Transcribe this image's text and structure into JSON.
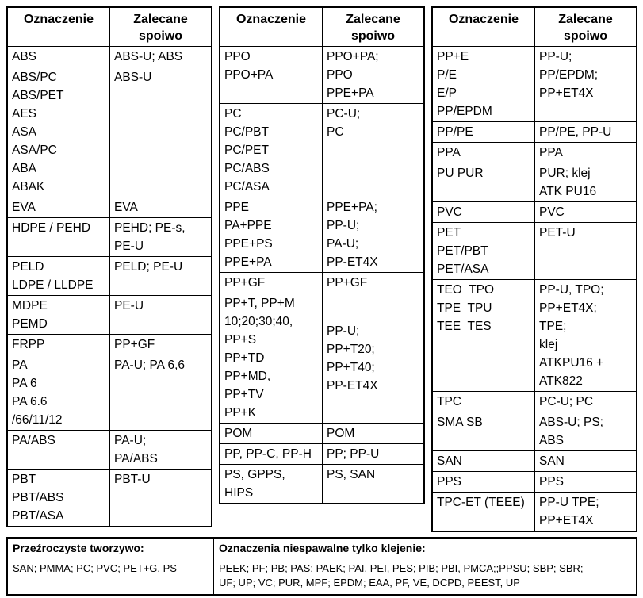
{
  "header": {
    "col1": "Oznaczenie",
    "col2": "Zalecane\nspoiwo"
  },
  "tables": [
    {
      "rows": [
        {
          "left": "ABS",
          "right": "ABS-U; ABS"
        },
        {
          "left": "ABS/PC\nABS/PET\nAES\nASA\nASA/PC\nABA\nABAK",
          "right": "ABS-U"
        },
        {
          "left": "EVA",
          "right": "EVA"
        },
        {
          "left": "HDPE / PEHD",
          "right": "PEHD; PE-s,\nPE-U"
        },
        {
          "left": "PELD\nLDPE / LLDPE",
          "right": "PELD; PE-U"
        },
        {
          "left": "MDPE\nPEMD",
          "right": "PE-U"
        },
        {
          "left": "FRPP",
          "right": "PP+GF"
        },
        {
          "left": "PA\nPA 6\nPA 6.6\n/66/11/12",
          "right": "PA-U; PA 6,6"
        },
        {
          "left": "PA/ABS",
          "right": "PA-U;\nPA/ABS"
        },
        {
          "left": "PBT\nPBT/ABS\nPBT/ASA",
          "right": "PBT-U"
        }
      ]
    },
    {
      "rows": [
        {
          "left": "PPO\nPPO+PA",
          "right": "PPO+PA;\nPPO\nPPE+PA"
        },
        {
          "left": "PC\nPC/PBT\nPC/PET\nPC/ABS\nPC/ASA",
          "right": "PC-U;\nPC"
        },
        {
          "left": "PPE\nPA+PPE\nPPE+PS\nPPE+PA",
          "right": "PPE+PA;\nPP-U;\nPA-U;\nPP-ET4X"
        },
        {
          "left": "PP+GF",
          "right": "PP+GF"
        },
        {
          "left": "PP+T, PP+M\n10;20;30;40,\nPP+S\nPP+TD\nPP+MD,\nPP+TV\nPP+K",
          "right": "PP-U;\nPP+T20;\nPP+T40;\nPP-ET4X",
          "valign": "center"
        },
        {
          "left": "POM",
          "right": "POM"
        },
        {
          "left": "PP, PP-C, PP-H",
          "right": "PP; PP-U"
        },
        {
          "left": "PS, GPPS,\nHIPS",
          "right": "PS, SAN"
        }
      ]
    },
    {
      "rows": [
        {
          "left": "PP+E\nP/E\nE/P\nPP/EPDM",
          "right": "PP-U;\nPP/EPDM;\nPP+ET4X"
        },
        {
          "left": "PP/PE",
          "right": "PP/PE, PP-U"
        },
        {
          "left": "PPA",
          "right": "PPA"
        },
        {
          "left": "PU PUR",
          "right": "PUR; klej\nATK PU16"
        },
        {
          "left": "PVC",
          "right": "PVC"
        },
        {
          "left": "PET\nPET/PBT\nPET/ASA",
          "right": "PET-U"
        },
        {
          "left": "TEO  TPO\nTPE  TPU\nTEE  TES",
          "right": "PP-U, TPO;\nPP+ET4X;\nTPE;\nklej\nATKPU16 +\nATK822"
        },
        {
          "left": "TPC",
          "right": "PC-U; PC"
        },
        {
          "left": "SMA SB",
          "right": "ABS-U; PS;\nABS"
        },
        {
          "left": "SAN",
          "right": "SAN"
        },
        {
          "left": "PPS",
          "right": "PPS"
        },
        {
          "left": "TPC-ET (TEEE)",
          "right": "PP-U TPE;\nPP+ET4X"
        }
      ]
    }
  ],
  "footer": {
    "left_title": "Przeźroczyste tworzywo:",
    "left_value": "SAN; PMMA; PC; PVC; PET+G, PS",
    "right_title": "Oznaczenia niespawalne tylko klejenie:",
    "right_value": "PEEK; PF; PB; PAS; PAEK; PAI, PEI, PES; PIB; PBI, PMCA;;PPSU; SBP; SBR;\nUF; UP; VC; PUR, MPF; EPDM; EAA, PF, VE, DCPD, PEEST, UP"
  }
}
